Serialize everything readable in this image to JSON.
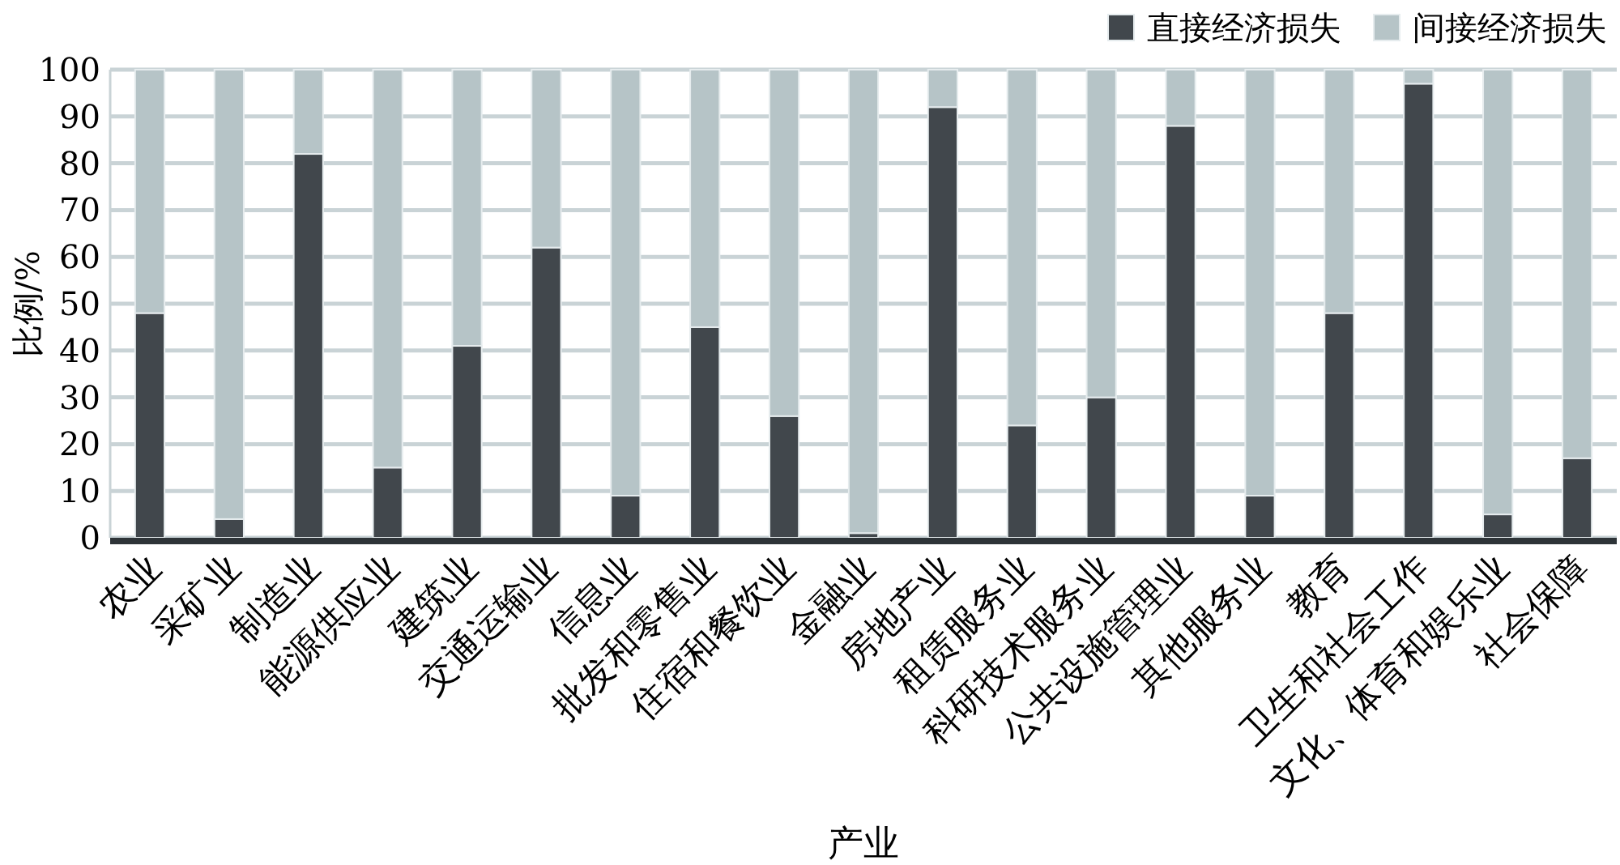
{
  "chart_data": {
    "type": "bar",
    "stacked": true,
    "xlabel": "产业",
    "ylabel": "比例/%",
    "categories": [
      "农业",
      "采矿业",
      "制造业",
      "能源供应业",
      "建筑业",
      "交通运输业",
      "信息业",
      "批发和零售业",
      "住宿和餐饮业",
      "金融业",
      "房地产业",
      "租赁服务业",
      "科研技术服务业",
      "公共设施管理业",
      "其他服务业",
      "教育",
      "卫生和社会工作",
      "文化、体育和娱乐业",
      "社会保障"
    ],
    "series": [
      {
        "name": "直接经济损失",
        "color": "#41474c",
        "values": [
          48,
          4,
          82,
          15,
          41,
          62,
          9,
          45,
          26,
          1,
          92,
          24,
          30,
          88,
          9,
          48,
          97,
          5,
          17
        ]
      },
      {
        "name": "间接经济损失",
        "color": "#b6c4c7",
        "values": [
          52,
          96,
          18,
          85,
          59,
          38,
          91,
          55,
          74,
          99,
          8,
          76,
          70,
          12,
          91,
          52,
          3,
          95,
          83
        ]
      }
    ],
    "ylim": [
      0,
      100
    ],
    "yticks": [
      0,
      10,
      20,
      30,
      40,
      50,
      60,
      70,
      80,
      90,
      100
    ],
    "grid": "y",
    "legend": "top right"
  }
}
